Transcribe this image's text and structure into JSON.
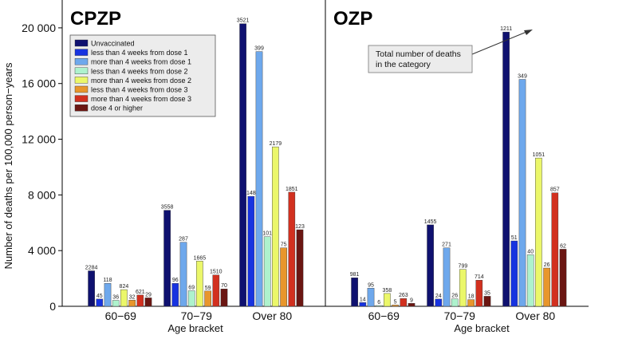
{
  "chart_data": [
    {
      "type": "bar",
      "title": "CPZP",
      "xlabel": "Age bracket",
      "ylabel": "Number of deaths per 100,000 person−years",
      "ylim": [
        0,
        22000
      ],
      "yticks": [
        "0",
        "4 000",
        "8 000",
        "12 000",
        "16 000",
        "20 000"
      ],
      "ytick_values": [
        0,
        4000,
        8000,
        12000,
        16000,
        20000
      ],
      "legend_placement": "upper-left",
      "categories": [
        "60−69",
        "70−79",
        "Over 80"
      ],
      "series": [
        {
          "name": "Unvaccinated",
          "color": "#0f1170",
          "values": [
            2550,
            6900,
            20300
          ],
          "labels": [
            "2284",
            "3558",
            "3521"
          ]
        },
        {
          "name": "less than 4 weeks from dose 1",
          "color": "#1733e0",
          "values": [
            520,
            1650,
            7900
          ],
          "labels": [
            "45",
            "96",
            "148"
          ]
        },
        {
          "name": "more than 4 weeks from dose 1",
          "color": "#6ea8ec",
          "values": [
            1650,
            4600,
            18300
          ],
          "labels": [
            "118",
            "287",
            "399"
          ]
        },
        {
          "name": "less than 4 weeks from dose 2",
          "color": "#aef2cd",
          "values": [
            430,
            1120,
            5000
          ],
          "labels": [
            "36",
            "69",
            "101"
          ]
        },
        {
          "name": "more than 4 weeks from dose 2",
          "color": "#ebf76a",
          "values": [
            1200,
            3250,
            11450
          ],
          "labels": [
            "824",
            "1665",
            "2179"
          ]
        },
        {
          "name": "less than 4 weeks from dose 3",
          "color": "#e8962c",
          "values": [
            440,
            1100,
            4200
          ],
          "labels": [
            "32",
            "59",
            "75"
          ]
        },
        {
          "name": "more than 4 weeks from dose 3",
          "color": "#d2301f",
          "values": [
            810,
            2250,
            8200
          ],
          "labels": [
            "621",
            "1510",
            "1851"
          ]
        },
        {
          "name": "dose 4 or higher",
          "color": "#6b1612",
          "values": [
            610,
            1250,
            5500
          ],
          "labels": [
            "29",
            "70",
            "123"
          ]
        }
      ]
    },
    {
      "type": "bar",
      "title": "OZP",
      "xlabel": "Age bracket",
      "ylim": [
        0,
        22000
      ],
      "categories": [
        "60−69",
        "70−79",
        "Over 80"
      ],
      "annotation": {
        "lines": [
          "Total number of deaths",
          "in the category"
        ]
      },
      "series": [
        {
          "name": "Unvaccinated",
          "color": "#0f1170",
          "values": [
            2050,
            5850,
            19700
          ],
          "labels": [
            "981",
            "1455",
            "1211"
          ]
        },
        {
          "name": "less than 4 weeks from dose 1",
          "color": "#1733e0",
          "values": [
            270,
            520,
            4700
          ],
          "labels": [
            "14",
            "24",
            "51"
          ]
        },
        {
          "name": "more than 4 weeks from dose 1",
          "color": "#6ea8ec",
          "values": [
            1300,
            4200,
            16300
          ],
          "labels": [
            "95",
            "271",
            "349"
          ]
        },
        {
          "name": "less than 4 weeks from dose 2",
          "color": "#aef2cd",
          "values": [
            60,
            530,
            3700
          ],
          "labels": [
            "6",
            "26",
            "40"
          ]
        },
        {
          "name": "more than 4 weeks from dose 2",
          "color": "#ebf76a",
          "values": [
            920,
            2650,
            10650
          ],
          "labels": [
            "358",
            "799",
            "1051"
          ]
        },
        {
          "name": "less than 4 weeks from dose 3",
          "color": "#e8962c",
          "values": [
            90,
            480,
            2750
          ],
          "labels": [
            "5",
            "18",
            "26"
          ]
        },
        {
          "name": "more than 4 weeks from dose 3",
          "color": "#d2301f",
          "values": [
            560,
            1880,
            8150
          ],
          "labels": [
            "263",
            "714",
            "857"
          ]
        },
        {
          "name": "dose 4 or higher",
          "color": "#6b1612",
          "values": [
            210,
            720,
            4100
          ],
          "labels": [
            "9",
            "35",
            "62"
          ]
        }
      ]
    }
  ]
}
